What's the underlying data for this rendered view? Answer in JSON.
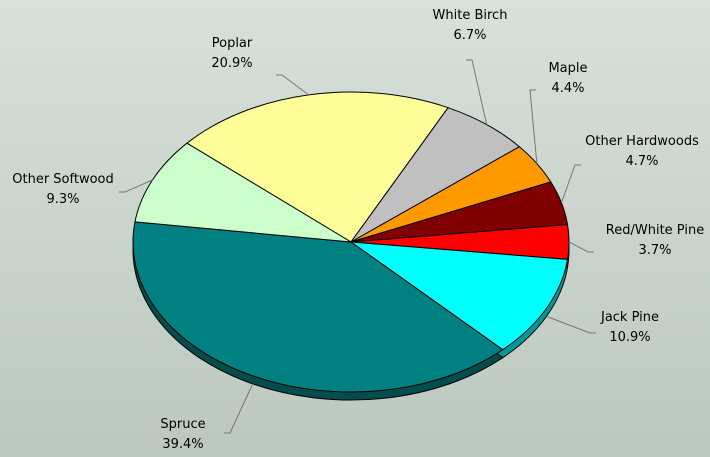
{
  "chart_data": {
    "type": "pie",
    "categories": [
      "Poplar",
      "White Birch",
      "Maple",
      "Other Hardwoods",
      "Red/White Pine",
      "Jack Pine",
      "Spruce",
      "Other Softwood"
    ],
    "values": [
      20.9,
      6.7,
      4.4,
      4.7,
      3.7,
      10.9,
      39.4,
      9.3
    ],
    "value_labels": [
      "20.9%",
      "6.7%",
      "4.4%",
      "4.7%",
      "3.7%",
      "10.9%",
      "39.4%",
      "9.3%"
    ],
    "colors": [
      "#ffff99",
      "#c0c0c0",
      "#ff9900",
      "#800000",
      "#ff0000",
      "#00ffff",
      "#008080",
      "#ccffcc"
    ]
  }
}
